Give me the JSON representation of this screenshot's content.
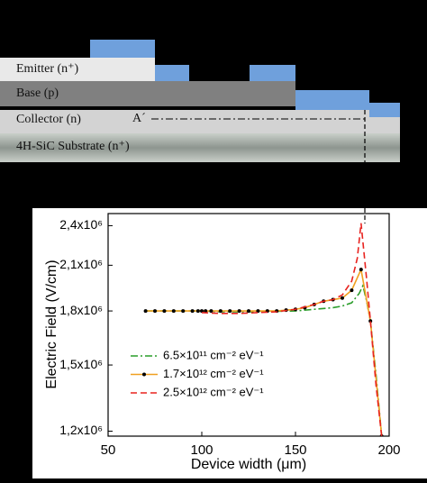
{
  "diagram": {
    "layers": [
      {
        "label": "Emitter (n⁺)"
      },
      {
        "label": "Base (p)"
      },
      {
        "label": "Collector (n)"
      },
      {
        "label": "4H-SiC Substrate (n⁺)"
      }
    ],
    "cut_label": "A´"
  },
  "chart_data": {
    "type": "line",
    "x_label": "Device width (μm)",
    "y_label": "Electric Field (V/cm)",
    "xlim": [
      50,
      200
    ],
    "xticks": [
      50,
      100,
      150,
      200
    ],
    "ylim": [
      1180000,
      2500000
    ],
    "ylog": true,
    "yticks": [
      {
        "value": 1200000,
        "label": "1,2x10⁶"
      },
      {
        "value": 1500000,
        "label": "1,5x10⁶"
      },
      {
        "value": 1800000,
        "label": "1,8x10⁶"
      },
      {
        "value": 2100000,
        "label": "2,1x10⁶"
      },
      {
        "value": 2400000,
        "label": "2,4x10⁶"
      }
    ],
    "legend": "lower left",
    "series": [
      {
        "name": "6.5×10¹¹ cm⁻² eV⁻¹",
        "color": "#2a9d2a",
        "dash": "dashdot",
        "x": [
          70,
          80,
          90,
          100,
          110,
          120,
          130,
          140,
          150,
          160,
          170,
          175,
          180,
          184,
          186,
          188,
          190,
          193,
          196
        ],
        "values": [
          1800000,
          1800000,
          1800000,
          1800000,
          1795000,
          1795000,
          1795000,
          1798000,
          1800000,
          1810000,
          1820000,
          1830000,
          1850000,
          1910000,
          1960000,
          1860000,
          1740000,
          1450000,
          1180000
        ]
      },
      {
        "name": "1.7×10¹² cm⁻² eV⁻¹",
        "color": "#f0a020",
        "dash": "solid",
        "marker_color": "#000000",
        "x": [
          70,
          75,
          80,
          85,
          90,
          95,
          98,
          100,
          102,
          105,
          110,
          115,
          120,
          125,
          130,
          135,
          140,
          145,
          150,
          155,
          160,
          165,
          170,
          175,
          180,
          185,
          190,
          196
        ],
        "values": [
          1800000,
          1800000,
          1800000,
          1800000,
          1800000,
          1800000,
          1800000,
          1800000,
          1800000,
          1800000,
          1800000,
          1800000,
          1800000,
          1800000,
          1800000,
          1800000,
          1800000,
          1805000,
          1810000,
          1820000,
          1840000,
          1860000,
          1870000,
          1880000,
          1930000,
          2070000,
          1740000,
          1180000
        ]
      },
      {
        "name": "2.5×10¹² cm⁻² eV⁻¹",
        "color": "#e8231f",
        "dash": "dashed",
        "x": [
          100,
          110,
          120,
          130,
          140,
          150,
          160,
          165,
          170,
          175,
          180,
          183,
          185,
          188,
          190,
          193,
          196
        ],
        "values": [
          1790000,
          1785000,
          1785000,
          1790000,
          1795000,
          1810000,
          1840000,
          1860000,
          1870000,
          1900000,
          1990000,
          2150000,
          2420000,
          2000000,
          1740000,
          1400000,
          1180000
        ]
      }
    ]
  }
}
